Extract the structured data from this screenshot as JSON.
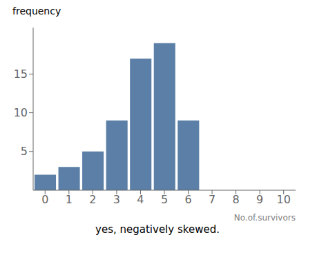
{
  "chart_data": {
    "type": "bar",
    "subtitle": "yes, negatively skewed.",
    "xlabel": "No.of.survivors",
    "ylabel": "frequency",
    "x": [
      0,
      1,
      2,
      3,
      4,
      5,
      6
    ],
    "values": [
      2,
      3,
      5,
      9,
      17,
      19,
      9
    ],
    "color": "#5b7fa6",
    "xlim": [
      -0.5,
      10.5
    ],
    "xticks": [
      0,
      1,
      2,
      3,
      4,
      5,
      6,
      7,
      8,
      9,
      10
    ],
    "ylim": [
      0,
      21
    ],
    "yticks": [
      5,
      10,
      15
    ],
    "grid": false
  }
}
